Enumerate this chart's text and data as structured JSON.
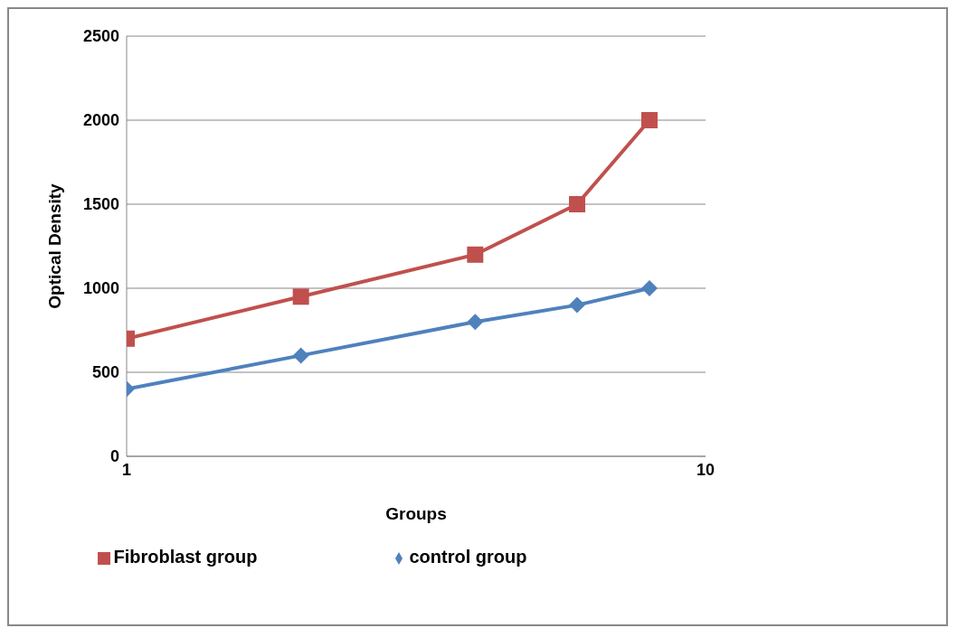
{
  "chart_data": {
    "type": "line",
    "xlabel": "Groups",
    "ylabel": "Optical Density",
    "x": [
      1,
      2,
      4,
      6,
      8
    ],
    "series": [
      {
        "name": "control group",
        "color": "#4f81bd",
        "values": [
          400,
          600,
          800,
          900,
          1000
        ],
        "marker": "diamond"
      },
      {
        "name": "Fibroblast group",
        "color": "#c0504d",
        "values": [
          700,
          950,
          1200,
          1500,
          2000
        ],
        "marker": "square"
      }
    ],
    "log": "x",
    "xlim": [
      1,
      10
    ],
    "xticks": [
      1,
      10
    ],
    "ylim": [
      0,
      2500
    ],
    "yticks": [
      0,
      500,
      1000,
      1500,
      2000,
      2500
    ],
    "grid": "y",
    "legend": "bottom",
    "line_style": "solid"
  }
}
